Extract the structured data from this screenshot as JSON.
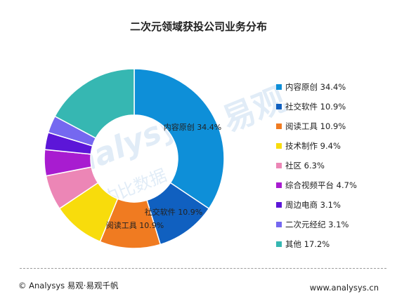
{
  "title": "二次元领域获投公司业务分布",
  "chart_data": {
    "type": "pie",
    "style": "donut",
    "title": "二次元领域获投公司业务分布",
    "slices": [
      {
        "label": "内容原创",
        "value": 34.4,
        "display": "34.4%",
        "color": "#0e8fd8"
      },
      {
        "label": "社交软件",
        "value": 10.9,
        "display": "10.9%",
        "color": "#1060c0"
      },
      {
        "label": "阅读工具",
        "value": 10.9,
        "display": "10.9%",
        "color": "#f07b21"
      },
      {
        "label": "技术制作",
        "value": 9.4,
        "display": "9.4%",
        "color": "#f8dc0c"
      },
      {
        "label": "社区",
        "value": 6.3,
        "display": "6.3%",
        "color": "#ec86b6"
      },
      {
        "label": "综合视频平台",
        "value": 4.7,
        "display": "4.7%",
        "color": "#a81cd0"
      },
      {
        "label": "周边电商",
        "value": 3.1,
        "display": "3.1%",
        "color": "#5c16d8"
      },
      {
        "label": "二次元经纪",
        "value": 3.1,
        "display": "3.1%",
        "color": "#7568f0"
      },
      {
        "label": "其他",
        "value": 17.2,
        "display": "17.2%",
        "color": "#36b7b2"
      }
    ],
    "data_labels_shown_for": [
      "内容原创",
      "社交软件",
      "阅读工具"
    ],
    "legend_position": "right"
  },
  "watermark": {
    "latin": "Analysys",
    "cn_big": "易观",
    "cn_small": "内比数据"
  },
  "footer": {
    "left": "© Analysys 易观·易观千帆",
    "right": "www.analysys.cn"
  }
}
